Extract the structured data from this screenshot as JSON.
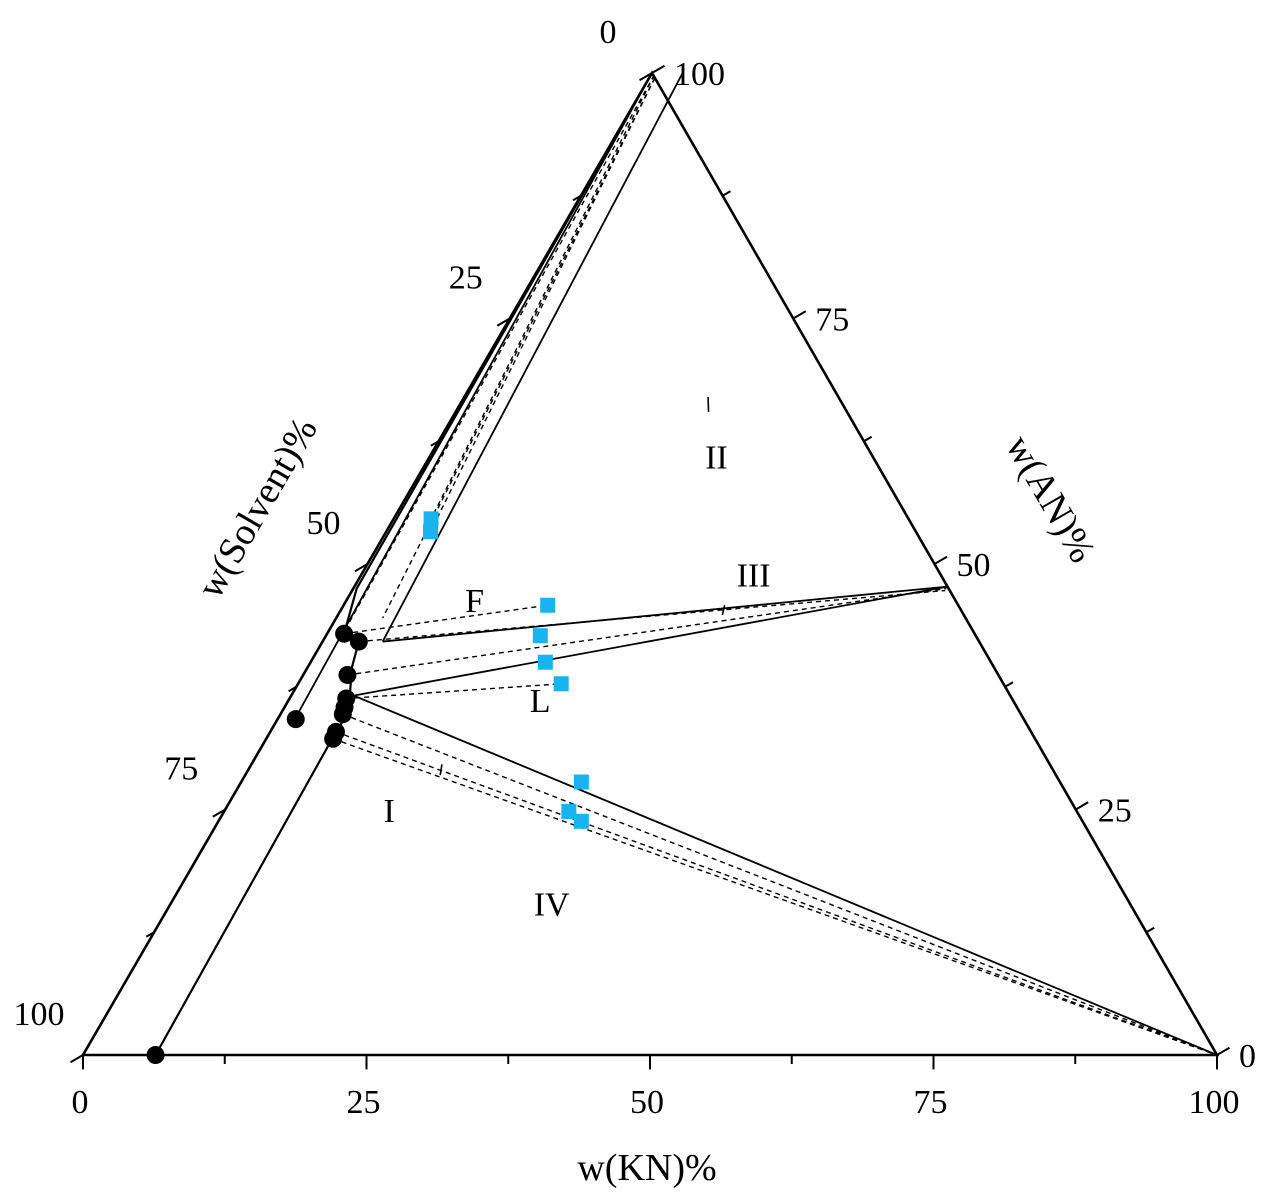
{
  "chart_data": {
    "type": "scatter",
    "subtype": "ternary-phase-diagram",
    "components": [
      "KN",
      "AN",
      "Solvent"
    ],
    "axes": {
      "bottom": {
        "label": "w(KN)%",
        "ticks": [
          "0",
          "25",
          "50",
          "75",
          "100"
        ]
      },
      "right": {
        "label": "w(AN)%",
        "ticks": [
          "0",
          "25",
          "50",
          "75",
          "100"
        ]
      },
      "left": {
        "label": "w(Solvent)%",
        "ticks": [
          "0",
          "25",
          "50",
          "75",
          "100"
        ]
      },
      "range": [
        0,
        100
      ],
      "minor_tick_step": 12.5
    },
    "regions": [
      {
        "label": "I",
        "kn": 14.7,
        "an": 24.5
      },
      {
        "label": "II",
        "kn": 25.5,
        "an": 60.5
      },
      {
        "label": "III",
        "kn": 34.8,
        "an": 48.5
      },
      {
        "label": "F",
        "kn": 11.5,
        "an": 45.9
      },
      {
        "label": "L",
        "kn": 22.4,
        "an": 35.7
      },
      {
        "label": "IV",
        "kn": 33.8,
        "an": 15.0
      }
    ],
    "region_leaders": [
      {
        "label": "II",
        "from": {
          "kn": 22.3,
          "an": 65.5
        },
        "to": {
          "kn": 21.5,
          "an": 67.0
        }
      },
      {
        "label": "III",
        "from": {
          "kn": 33.9,
          "an": 44.8
        },
        "to": {
          "kn": 33.6,
          "an": 45.8
        }
      },
      {
        "label": "I",
        "from": {
          "kn": 16.8,
          "an": 29.6
        },
        "to": {
          "kn": 17.2,
          "an": 28.5
        }
      }
    ],
    "solubility_points": [
      {
        "kn": 6.4,
        "an": 0.0
      },
      {
        "kn": 1.6,
        "an": 34.2
      },
      {
        "kn": 1.5,
        "an": 42.9
      },
      {
        "kn": 3.2,
        "an": 42.1
      },
      {
        "kn": 3.9,
        "an": 38.7
      },
      {
        "kn": 5.0,
        "an": 36.3
      },
      {
        "kn": 5.3,
        "an": 35.4
      },
      {
        "kn": 5.5,
        "an": 34.7
      },
      {
        "kn": 5.8,
        "an": 32.9
      },
      {
        "kn": 5.9,
        "an": 32.2
      }
    ],
    "phase_boundary": [
      {
        "kn": 6.4,
        "an": 0.0
      },
      {
        "kn": 5.8,
        "an": 32.9
      },
      {
        "kn": 5.9,
        "an": 34.9
      },
      {
        "kn": 3.9,
        "an": 39.5
      },
      {
        "kn": 3.2,
        "an": 42.1
      },
      {
        "kn": 1.5,
        "an": 42.9
      },
      {
        "kn": 0.3,
        "an": 47.5
      },
      {
        "kn": 0.0,
        "an": 100.0
      }
    ],
    "solid_tie_lines": [
      {
        "from": {
          "kn": 1.5,
          "an": 34.9
        },
        "to": {
          "kn": 0.0,
          "an": 100.0
        }
      },
      {
        "from": {
          "kn": 3.2,
          "an": 42.1
        },
        "to": {
          "kn": 3.2,
          "an": 42.1
        }
      },
      {
        "from": {
          "kn": 5.3,
          "an": 42.1
        },
        "to": {
          "kn": 2.7,
          "an": 100.0
        }
      },
      {
        "from": {
          "kn": 5.3,
          "an": 42.1
        },
        "to": {
          "kn": 52.3,
          "an": 47.7
        }
      },
      {
        "from": {
          "kn": 5.5,
          "an": 36.6
        },
        "to": {
          "kn": 52.3,
          "an": 47.7
        }
      },
      {
        "from": {
          "kn": 5.5,
          "an": 36.6
        },
        "to": {
          "kn": 100.0,
          "an": 0.0
        }
      }
    ],
    "feed_points": [
      {
        "kn": 3.3,
        "an": 54.6
      },
      {
        "kn": 3.9,
        "an": 53.3
      },
      {
        "kn": 18.0,
        "an": 45.8
      },
      {
        "kn": 18.9,
        "an": 42.7
      },
      {
        "kn": 20.7,
        "an": 40.0
      },
      {
        "kn": 23.2,
        "an": 37.8
      },
      {
        "kn": 30.0,
        "an": 27.8
      },
      {
        "kn": 30.4,
        "an": 24.8
      },
      {
        "kn": 32.0,
        "an": 23.8
      }
    ],
    "dashed_tie_lines": [
      {
        "from": {
          "kn": 0.3,
          "an": 99.8
        },
        "to": {
          "kn": 3.3,
          "an": 54.6
        }
      },
      {
        "from": {
          "kn": 0.5,
          "an": 99.5
        },
        "to": {
          "kn": 3.9,
          "an": 53.3
        }
      },
      {
        "from": {
          "kn": 0.3,
          "an": 99.8
        },
        "to": {
          "kn": 1.4,
          "an": 42.9
        }
      },
      {
        "from": {
          "kn": 0.5,
          "an": 99.5
        },
        "to": {
          "kn": 4.1,
          "an": 44.5
        }
      },
      {
        "from": {
          "kn": 1.5,
          "an": 42.9
        },
        "to": {
          "kn": 18.0,
          "an": 45.8
        }
      },
      {
        "from": {
          "kn": 3.2,
          "an": 42.1
        },
        "to": {
          "kn": 52.3,
          "an": 47.3
        }
      },
      {
        "from": {
          "kn": 3.9,
          "an": 38.7
        },
        "to": {
          "kn": 52.3,
          "an": 47.5
        }
      },
      {
        "from": {
          "kn": 5.0,
          "an": 36.3
        },
        "to": {
          "kn": 23.2,
          "an": 37.8
        }
      },
      {
        "from": {
          "kn": 5.5,
          "an": 34.7
        },
        "to": {
          "kn": 100.0,
          "an": 0.0
        }
      },
      {
        "from": {
          "kn": 5.8,
          "an": 32.9
        },
        "to": {
          "kn": 100.0,
          "an": 0.0
        }
      },
      {
        "from": {
          "kn": 5.9,
          "an": 32.2
        },
        "to": {
          "kn": 100.0,
          "an": 0.0
        }
      }
    ],
    "colors": {
      "axes": "#000000",
      "solubility_points": "#000000",
      "feed_points": "#19b3ef",
      "tie_lines": "#000000"
    },
    "legend": "none",
    "grid": false
  }
}
